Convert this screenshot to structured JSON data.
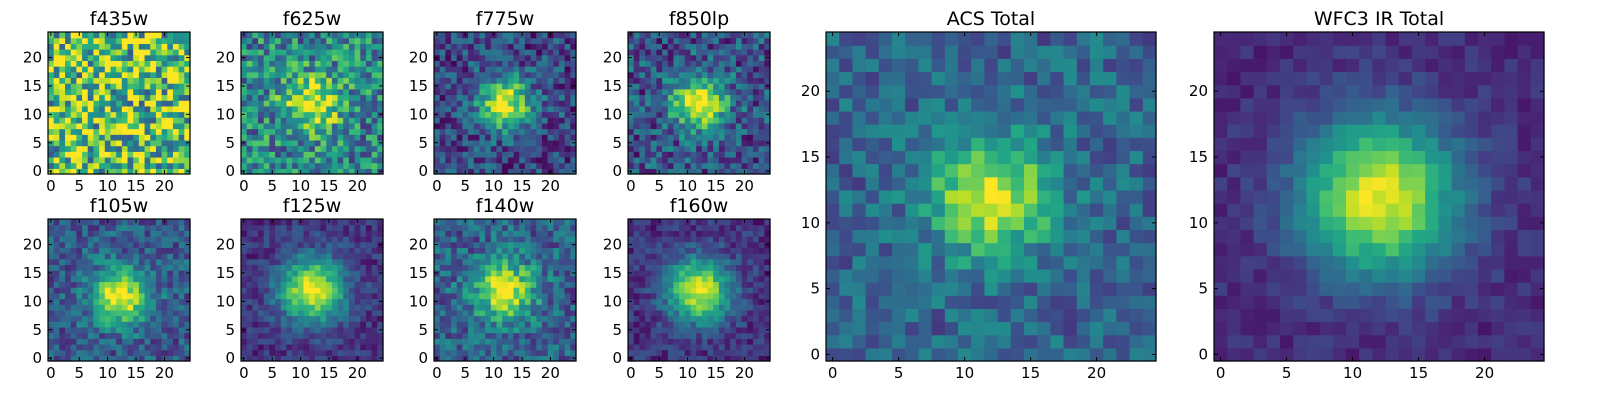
{
  "chart_data": {
    "type": "heatmap",
    "colormap": "viridis",
    "grid_size": 25,
    "panels": [
      {
        "id": "f435w",
        "title": "f435w",
        "xlim": [
          0,
          24
        ],
        "ylim": [
          0,
          24
        ],
        "xticks": [
          0,
          5,
          10,
          15,
          20
        ],
        "yticks": [
          0,
          5,
          10,
          15,
          20
        ],
        "center": [
          12,
          12
        ],
        "peak": 0.0,
        "sigma": 4,
        "noise": 0.45,
        "background": 0.72
      },
      {
        "id": "f625w",
        "title": "f625w",
        "xlim": [
          0,
          24
        ],
        "ylim": [
          0,
          24
        ],
        "xticks": [
          0,
          5,
          10,
          15,
          20
        ],
        "yticks": [
          0,
          5,
          10,
          15,
          20
        ],
        "center": [
          12,
          12
        ],
        "peak": 0.55,
        "sigma": 3.5,
        "noise": 0.3,
        "background": 0.45
      },
      {
        "id": "f775w",
        "title": "f775w",
        "xlim": [
          0,
          24
        ],
        "ylim": [
          0,
          24
        ],
        "xticks": [
          0,
          5,
          10,
          15,
          20
        ],
        "yticks": [
          0,
          5,
          10,
          15,
          20
        ],
        "center": [
          12,
          12
        ],
        "peak": 0.75,
        "sigma": 3.2,
        "noise": 0.22,
        "background": 0.22
      },
      {
        "id": "f850lp",
        "title": "f850lp",
        "xlim": [
          0,
          24
        ],
        "ylim": [
          0,
          24
        ],
        "xticks": [
          0,
          5,
          10,
          15,
          20
        ],
        "yticks": [
          0,
          5,
          10,
          15,
          20
        ],
        "center": [
          12,
          12
        ],
        "peak": 0.72,
        "sigma": 3.4,
        "noise": 0.24,
        "background": 0.26
      },
      {
        "id": "f105w",
        "title": "f105w",
        "xlim": [
          0,
          24
        ],
        "ylim": [
          0,
          24
        ],
        "xticks": [
          0,
          5,
          10,
          15,
          20
        ],
        "yticks": [
          0,
          5,
          10,
          15,
          20
        ],
        "center": [
          12,
          11
        ],
        "peak": 0.75,
        "sigma": 3.4,
        "noise": 0.18,
        "background": 0.28
      },
      {
        "id": "f125w",
        "title": "f125w",
        "xlim": [
          0,
          24
        ],
        "ylim": [
          0,
          24
        ],
        "xticks": [
          0,
          5,
          10,
          15,
          20
        ],
        "yticks": [
          0,
          5,
          10,
          15,
          20
        ],
        "center": [
          12,
          12
        ],
        "peak": 0.82,
        "sigma": 4.0,
        "noise": 0.12,
        "background": 0.15
      },
      {
        "id": "f140w",
        "title": "f140w",
        "xlim": [
          0,
          24
        ],
        "ylim": [
          0,
          24
        ],
        "xticks": [
          0,
          5,
          10,
          15,
          20
        ],
        "yticks": [
          0,
          5,
          10,
          15,
          20
        ],
        "center": [
          12,
          12
        ],
        "peak": 0.65,
        "sigma": 3.8,
        "noise": 0.2,
        "background": 0.3
      },
      {
        "id": "f160w",
        "title": "f160w",
        "xlim": [
          0,
          24
        ],
        "ylim": [
          0,
          24
        ],
        "xticks": [
          0,
          5,
          10,
          15,
          20
        ],
        "yticks": [
          0,
          5,
          10,
          15,
          20
        ],
        "center": [
          12,
          12
        ],
        "peak": 0.82,
        "sigma": 4.0,
        "noise": 0.12,
        "background": 0.14
      },
      {
        "id": "acs-total",
        "title": "ACS Total",
        "xlim": [
          0,
          24
        ],
        "ylim": [
          0,
          24
        ],
        "xticks": [
          0,
          5,
          10,
          15,
          20
        ],
        "yticks": [
          0,
          5,
          10,
          15,
          20
        ],
        "center": [
          12,
          12
        ],
        "peak": 0.65,
        "sigma": 3.2,
        "noise": 0.16,
        "background": 0.32
      },
      {
        "id": "wfc3-ir-total",
        "title": "WFC3 IR Total",
        "xlim": [
          0,
          24
        ],
        "ylim": [
          0,
          24
        ],
        "xticks": [
          0,
          5,
          10,
          15,
          20
        ],
        "yticks": [
          0,
          5,
          10,
          15,
          20
        ],
        "center": [
          12,
          12
        ],
        "peak": 0.85,
        "sigma": 4.2,
        "noise": 0.07,
        "background": 0.12
      }
    ]
  }
}
